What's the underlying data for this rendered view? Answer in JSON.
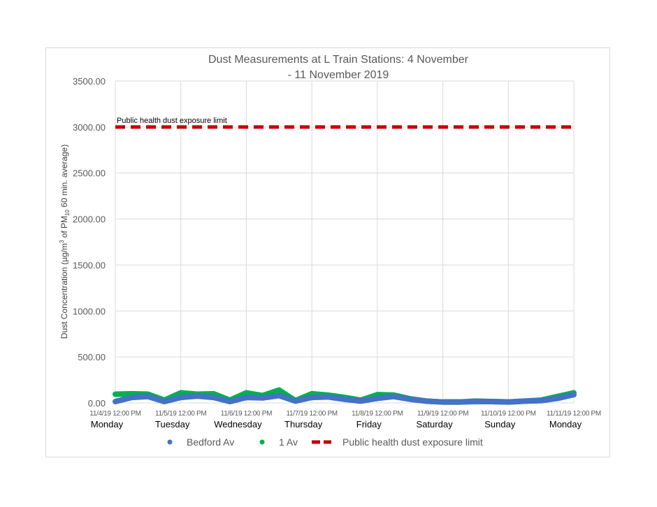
{
  "chart_data": {
    "type": "line",
    "title": "Dust Measurements at L Train Stations: 4 November - 11 November 2019",
    "title_lines": [
      "Dust Measurements at L Train Stations: 4 November",
      "- 11 November 2019"
    ],
    "ylabel": "Dust Concentration (µg/m³ of PM10 60 min. average)",
    "ylabel_parts": {
      "pre": "Dust Concentration (µg/m",
      "sup": "3",
      "mid": " of PM",
      "sub": "10",
      "post": " 60 min. average)"
    },
    "ylim": [
      0,
      3500
    ],
    "yticks": [
      "0.00",
      "500.00",
      "1000.00",
      "1500.00",
      "2000.00",
      "2500.00",
      "3000.00",
      "3500.00"
    ],
    "ytick_values": [
      0,
      500,
      1000,
      1500,
      2000,
      2500,
      3000,
      3500
    ],
    "xticks": [
      "11/4/19 12:00 PM",
      "11/5/19 12:00 PM",
      "11/6/19 12:00 PM",
      "11/7/19 12:00 PM",
      "11/8/19 12:00 PM",
      "11/9/19 12:00 PM",
      "11/10/19 12:00 PM",
      "11/11/19 12:00 PM"
    ],
    "day_labels": [
      "Monday",
      "Tuesday",
      "Wednesday",
      "Thursday",
      "Friday",
      "Saturday",
      "Sunday",
      "Monday"
    ],
    "grid": true,
    "legend_position": "bottom",
    "x_step_hours": 6,
    "series": [
      {
        "name": "Bedford Av",
        "color": "#4472c4",
        "values": [
          15,
          60,
          70,
          15,
          60,
          75,
          60,
          15,
          60,
          55,
          80,
          20,
          60,
          65,
          40,
          20,
          50,
          70,
          40,
          20,
          10,
          10,
          15,
          15,
          10,
          20,
          25,
          50,
          90
        ]
      },
      {
        "name": "1 Av",
        "color": "#00b050",
        "values": [
          95,
          100,
          95,
          30,
          110,
          95,
          100,
          30,
          110,
          80,
          140,
          25,
          100,
          85,
          60,
          30,
          90,
          85,
          45,
          20,
          10,
          10,
          20,
          15,
          10,
          20,
          30,
          70,
          110
        ]
      },
      {
        "name": "Public health dust exposure limit",
        "color": "#c00000",
        "constant": 3000
      }
    ],
    "annotation": "Public health dust exposure limit"
  }
}
